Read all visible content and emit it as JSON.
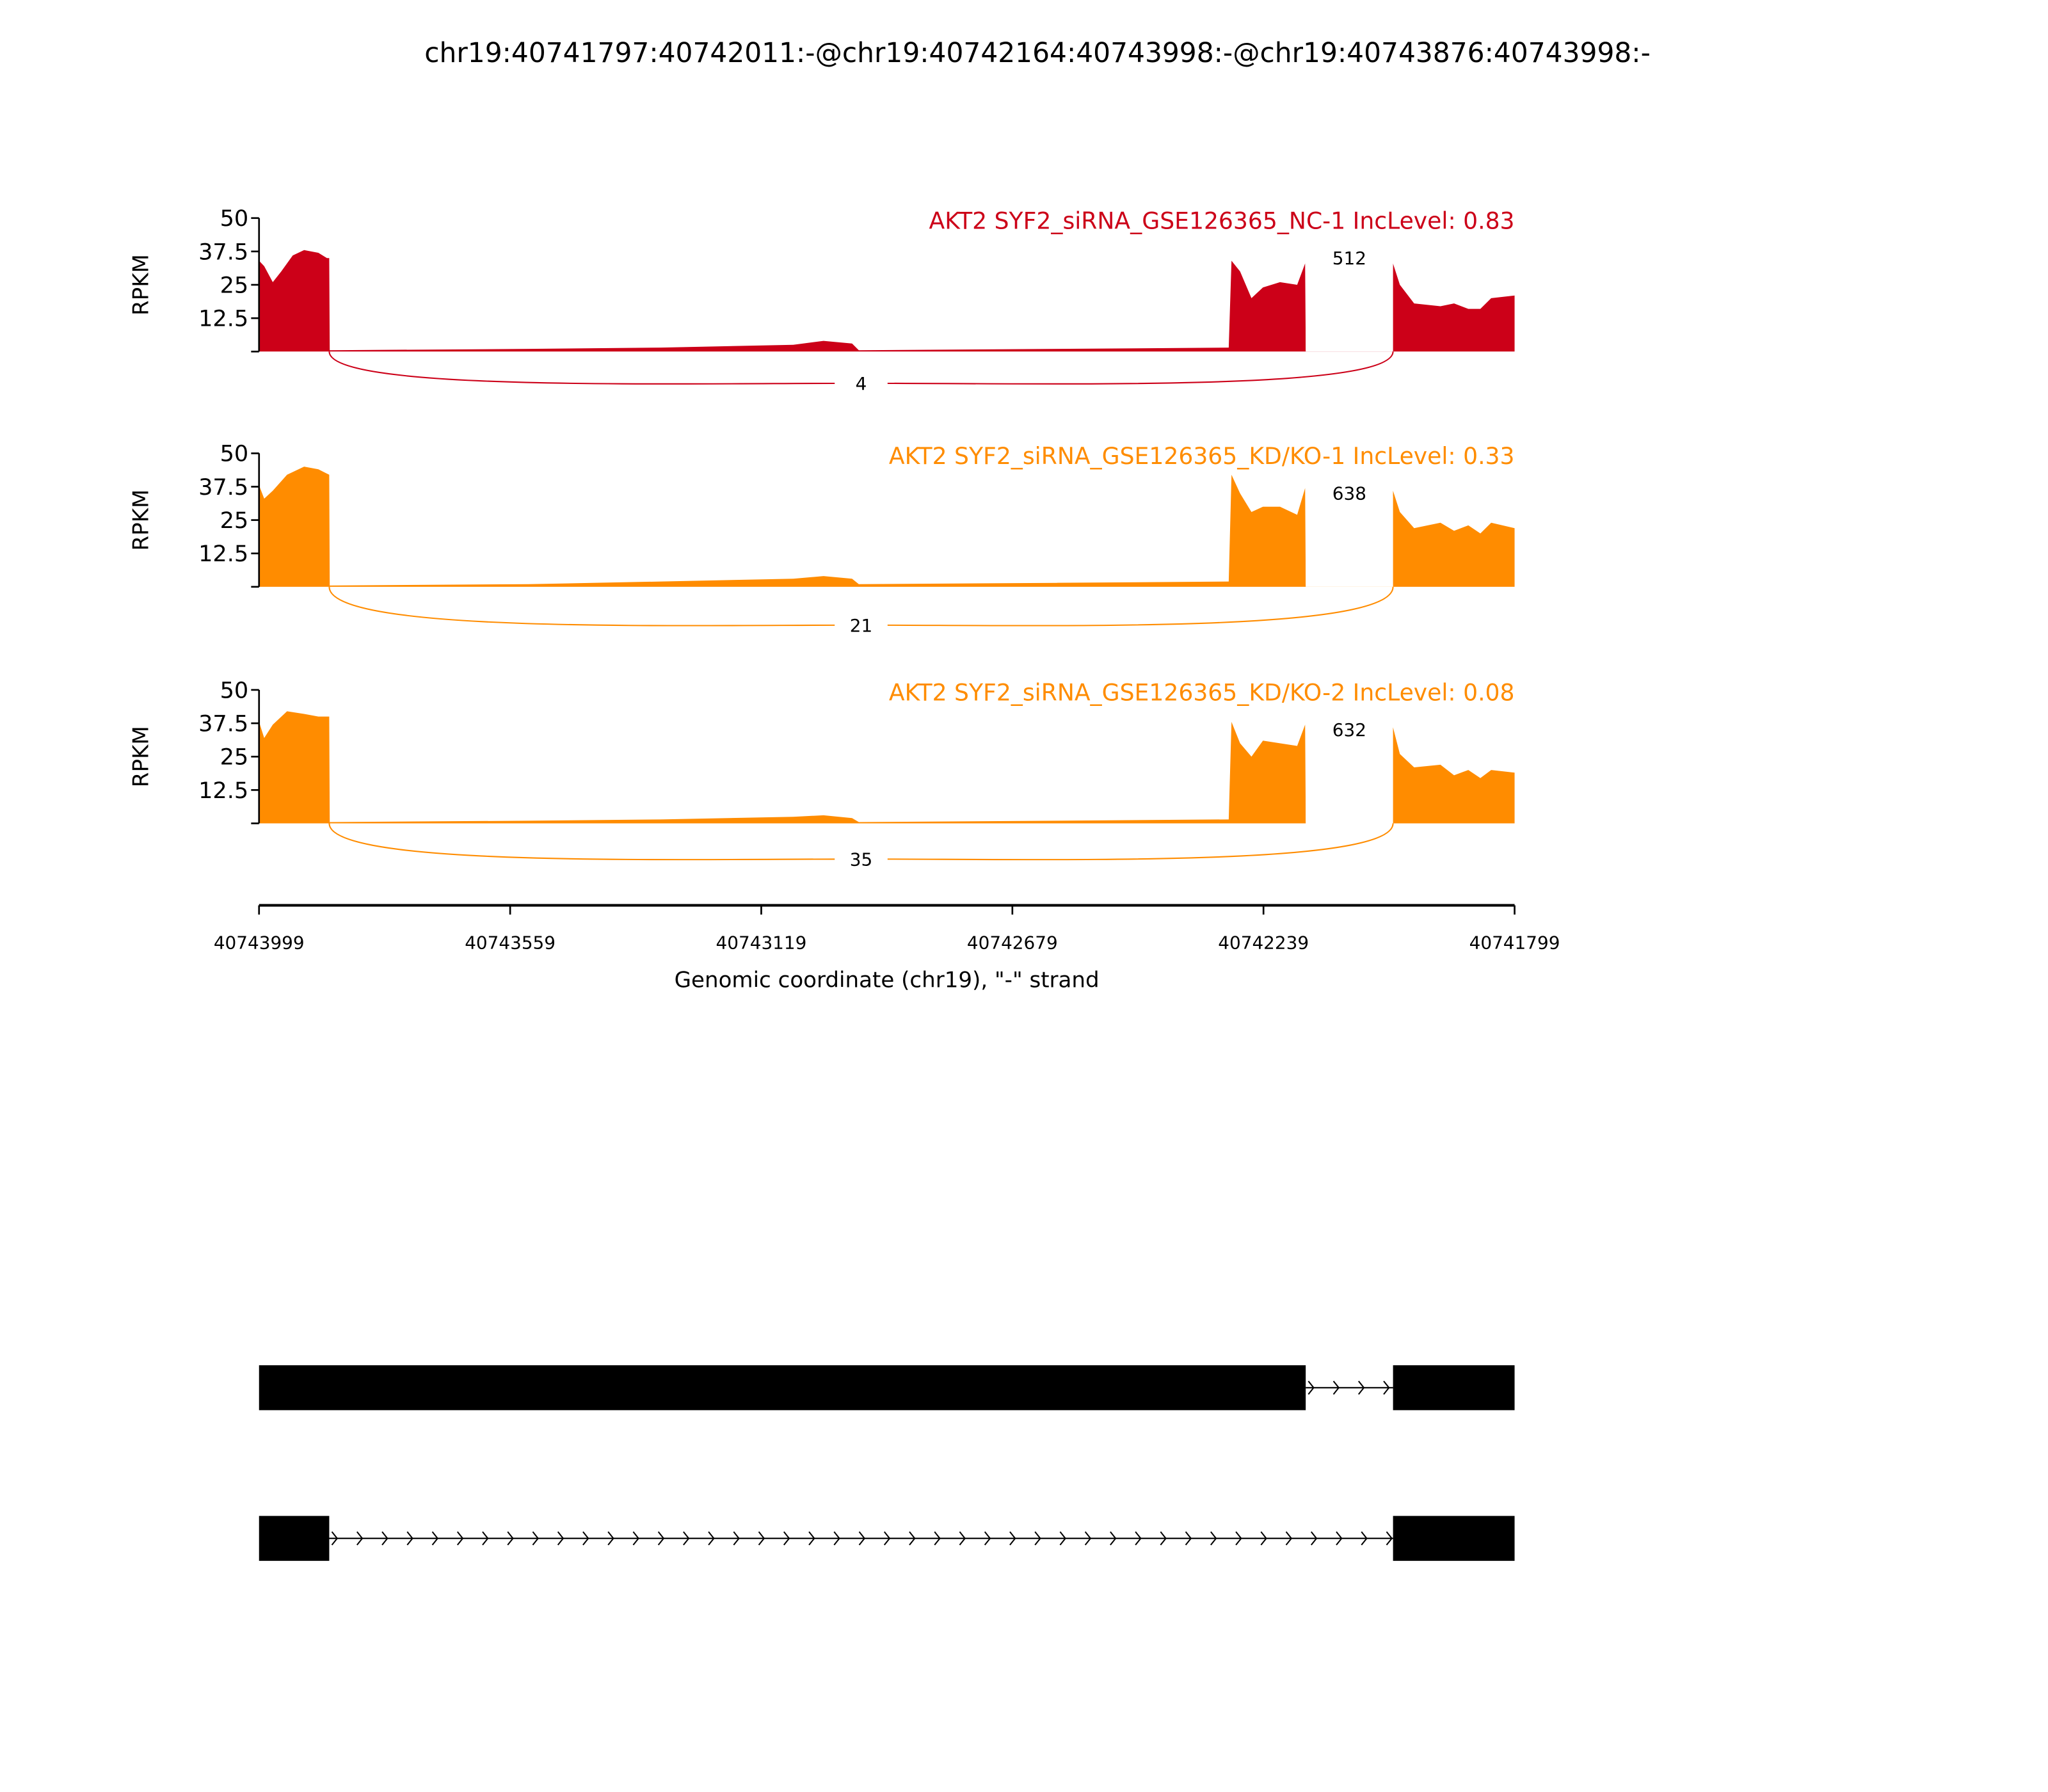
{
  "chart_data": {
    "type": "area",
    "title": "chr19:40741797:40742011:-@chr19:40742164:40743998:-@chr19:40743876:40743998:-",
    "xlabel": "Genomic coordinate (chr19), \"-\" strand",
    "ylabel": "RPKM",
    "xlim": [
      40743999,
      40741799
    ],
    "x_ticks": [
      "40743999",
      "40743559",
      "40743119",
      "40742679",
      "40742239",
      "40741799"
    ],
    "x_tick_values": [
      40743999,
      40743559,
      40743119,
      40742679,
      40742239,
      40741799
    ],
    "ylim": [
      0,
      50
    ],
    "y_ticks": [
      "50",
      "37.5",
      "25",
      "12.5"
    ],
    "y_tick_values": [
      50,
      37.5,
      25,
      12.5
    ],
    "series": [
      {
        "name": "AKT2 SYF2_siRNA_GSE126365_NC-1 IncLevel: 0.83",
        "color": "#CC0018",
        "coverage": [
          [
            40743999,
            34
          ],
          [
            40743990,
            32
          ],
          [
            40743975,
            26
          ],
          [
            40743960,
            30
          ],
          [
            40743940,
            36
          ],
          [
            40743920,
            38
          ],
          [
            40743895,
            37
          ],
          [
            40743880,
            35
          ],
          [
            40743876,
            35
          ],
          [
            40743875,
            0.5
          ],
          [
            40743527,
            1
          ],
          [
            40743295,
            1.5
          ],
          [
            40743063,
            2.5
          ],
          [
            40743010,
            4
          ],
          [
            40742960,
            3
          ],
          [
            40742948,
            0.5
          ],
          [
            40742600,
            1
          ],
          [
            40742300,
            1.5
          ],
          [
            40742295,
            34
          ],
          [
            40742280,
            30
          ],
          [
            40742260,
            20
          ],
          [
            40742240,
            24
          ],
          [
            40742210,
            26
          ],
          [
            40742180,
            25
          ],
          [
            40742166,
            33
          ],
          [
            40742165,
            0.5
          ],
          [
            40742013,
            0.5
          ],
          [
            40742012,
            33
          ],
          [
            40742000,
            25
          ],
          [
            40741975,
            18
          ],
          [
            40741929,
            17
          ],
          [
            40741905,
            18
          ],
          [
            40741880,
            16
          ],
          [
            40741859,
            16
          ],
          [
            40741840,
            20
          ],
          [
            40741799,
            21
          ]
        ],
        "junctions": [
          {
            "from": 40742165,
            "to": 40742012,
            "count": "512",
            "side": "top"
          },
          {
            "from": 40743876,
            "to": 40742012,
            "count": "4",
            "side": "bottom"
          }
        ]
      },
      {
        "name": "AKT2 SYF2_siRNA_GSE126365_KD/KO-1 IncLevel: 0.33",
        "color": "#FF8C00",
        "coverage": [
          [
            40743999,
            38
          ],
          [
            40743990,
            33
          ],
          [
            40743975,
            36
          ],
          [
            40743950,
            42
          ],
          [
            40743920,
            45
          ],
          [
            40743895,
            44
          ],
          [
            40743876,
            42
          ],
          [
            40743875,
            0.5
          ],
          [
            40743527,
            1
          ],
          [
            40743295,
            2
          ],
          [
            40743063,
            3
          ],
          [
            40743010,
            4
          ],
          [
            40742960,
            3
          ],
          [
            40742948,
            1
          ],
          [
            40742600,
            1.5
          ],
          [
            40742300,
            2
          ],
          [
            40742295,
            42
          ],
          [
            40742280,
            35
          ],
          [
            40742260,
            28
          ],
          [
            40742240,
            30
          ],
          [
            40742210,
            30
          ],
          [
            40742180,
            27
          ],
          [
            40742166,
            37
          ],
          [
            40742165,
            0.5
          ],
          [
            40742013,
            0.5
          ],
          [
            40742012,
            36
          ],
          [
            40742000,
            28
          ],
          [
            40741975,
            22
          ],
          [
            40741929,
            24
          ],
          [
            40741905,
            21
          ],
          [
            40741880,
            23
          ],
          [
            40741859,
            20
          ],
          [
            40741840,
            24
          ],
          [
            40741799,
            22
          ]
        ],
        "junctions": [
          {
            "from": 40742165,
            "to": 40742012,
            "count": "638",
            "side": "top"
          },
          {
            "from": 40743876,
            "to": 40742012,
            "count": "21",
            "side": "bottom"
          }
        ]
      },
      {
        "name": "AKT2 SYF2_siRNA_GSE126365_KD/KO-2 IncLevel: 0.08",
        "color": "#FF8C00",
        "coverage": [
          [
            40743999,
            38
          ],
          [
            40743990,
            32
          ],
          [
            40743975,
            37
          ],
          [
            40743950,
            42
          ],
          [
            40743920,
            41
          ],
          [
            40743895,
            40
          ],
          [
            40743876,
            40
          ],
          [
            40743875,
            0.5
          ],
          [
            40743527,
            1
          ],
          [
            40743295,
            1.5
          ],
          [
            40743063,
            2.5
          ],
          [
            40743010,
            3
          ],
          [
            40742960,
            2
          ],
          [
            40742948,
            0.5
          ],
          [
            40742600,
            1
          ],
          [
            40742300,
            1.5
          ],
          [
            40742295,
            38
          ],
          [
            40742280,
            30
          ],
          [
            40742260,
            25
          ],
          [
            40742240,
            31
          ],
          [
            40742210,
            30
          ],
          [
            40742180,
            29
          ],
          [
            40742166,
            37
          ],
          [
            40742165,
            0.5
          ],
          [
            40742013,
            0.5
          ],
          [
            40742012,
            36
          ],
          [
            40742000,
            26
          ],
          [
            40741975,
            21
          ],
          [
            40741929,
            22
          ],
          [
            40741905,
            18
          ],
          [
            40741880,
            20
          ],
          [
            40741859,
            17
          ],
          [
            40741840,
            20
          ],
          [
            40741799,
            19
          ]
        ],
        "junctions": [
          {
            "from": 40742165,
            "to": 40742012,
            "count": "632",
            "side": "top"
          },
          {
            "from": 40743876,
            "to": 40742012,
            "count": "35",
            "side": "bottom"
          }
        ]
      }
    ],
    "transcripts": [
      {
        "exons": [
          [
            40743999,
            40742165
          ],
          [
            40742012,
            40741799
          ]
        ]
      },
      {
        "exons": [
          [
            40743999,
            40743876
          ],
          [
            40742012,
            40741799
          ]
        ]
      }
    ]
  }
}
